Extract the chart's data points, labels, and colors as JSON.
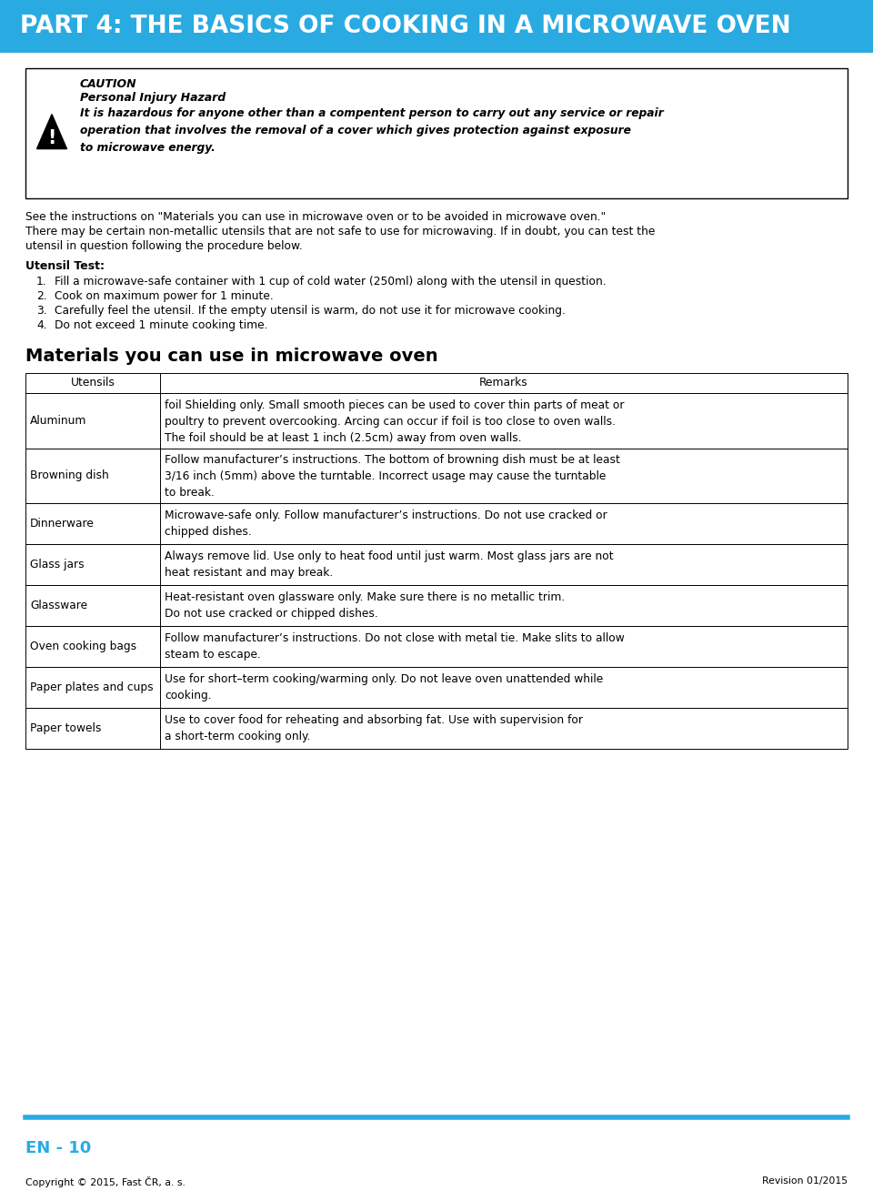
{
  "title": "PART 4: THE BASICS OF COOKING IN A MICROWAVE OVEN",
  "title_bg_color": "#29ABE2",
  "title_text_color": "#FFFFFF",
  "page_bg_color": "#FFFFFF",
  "caution_title": "CAUTION",
  "caution_subtitle": "Personal Injury Hazard",
  "caution_body": "It is hazardous for anyone other than a compentent person to carry out any service or repair\noperation that involves the removal of a cover which gives protection against exposure\nto microwave energy.",
  "intro_text_line1": "See the instructions on \"Materials you can use in microwave oven or to be avoided in microwave oven.\"",
  "intro_text_line2": "There may be certain non-metallic utensils that are not safe to use for microwaving. If in doubt, you can test the",
  "intro_text_line3": "utensil in question following the procedure below.",
  "utensil_test_title": "Utensil Test:",
  "utensil_test_steps": [
    "Fill a microwave-safe container with 1 cup of cold water (250ml) along with the utensil in question.",
    "Cook on maximum power for 1 minute.",
    "Carefully feel the utensil. If the empty utensil is warm, do not use it for microwave cooking.",
    "Do not exceed 1 minute cooking time."
  ],
  "table_title": "Materials you can use in microwave oven",
  "table_header": [
    "Utensils",
    "Remarks"
  ],
  "table_rows": [
    [
      "Aluminum",
      "foil Shielding only. Small smooth pieces can be used to cover thin parts of meat or\npoultry to prevent overcooking. Arcing can occur if foil is too close to oven walls.\nThe foil should be at least 1 inch (2.5cm) away from oven walls."
    ],
    [
      "Browning dish",
      "Follow manufacturer’s instructions. The bottom of browning dish must be at least\n3/16 inch (5mm) above the turntable. Incorrect usage may cause the turntable\nto break."
    ],
    [
      "Dinnerware",
      "Microwave-safe only. Follow manufacturer’s instructions. Do not use cracked or\nchipped dishes."
    ],
    [
      "Glass jars",
      "Always remove lid. Use only to heat food until just warm. Most glass jars are not\nheat resistant and may break."
    ],
    [
      "Glassware",
      "Heat-resistant oven glassware only. Make sure there is no metallic trim.\nDo not use cracked or chipped dishes."
    ],
    [
      "Oven cooking bags",
      "Follow manufacturer’s instructions. Do not close with metal tie. Make slits to allow\nsteam to escape."
    ],
    [
      "Paper plates and cups",
      "Use for short–term cooking/warming only. Do not leave oven unattended while\ncooking."
    ],
    [
      "Paper towels",
      "Use to cover food for reheating and absorbing fat. Use with supervision for\na short-term cooking only."
    ]
  ],
  "footer_line_color": "#29ABE2",
  "footer_page": "EN - 10",
  "footer_page_color": "#29ABE2",
  "footer_copyright": "Copyright © 2015, Fast ČR, a. s.",
  "footer_revision": "Revision 01/2015"
}
